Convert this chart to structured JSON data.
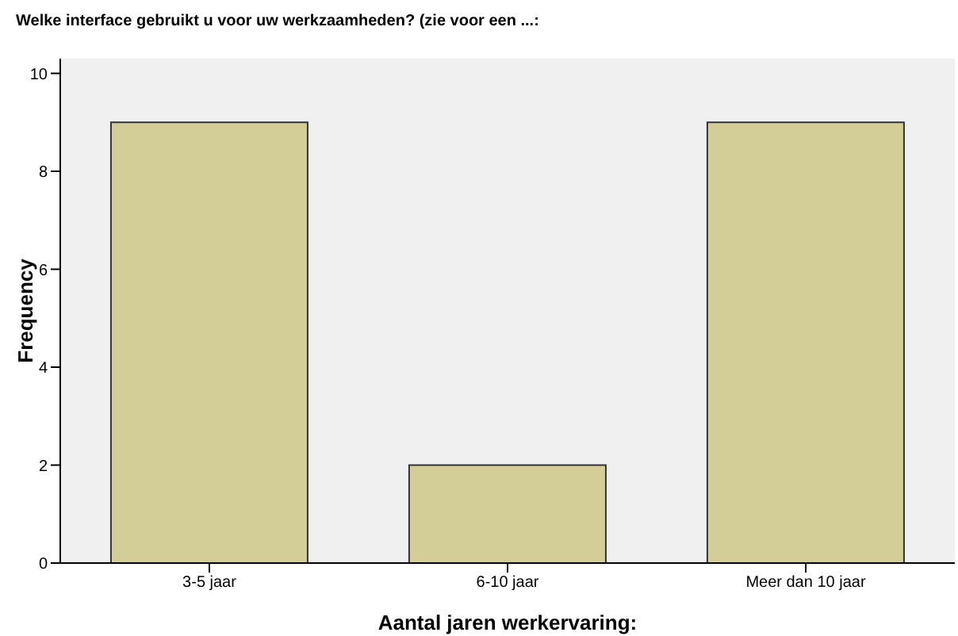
{
  "chart_data": {
    "type": "bar",
    "title": "Welke interface gebruikt u voor uw werkzaamheden? (zie voor een ...:",
    "xlabel": "Aantal jaren werkervaring:",
    "ylabel": "Frequency",
    "categories": [
      "3-5 jaar",
      "6-10 jaar",
      "Meer dan 10 jaar"
    ],
    "values": [
      9,
      2,
      9
    ],
    "color": "#d3ce97",
    "ylim": [
      0,
      10.3
    ],
    "yticks": [
      0,
      2,
      4,
      6,
      8,
      10
    ],
    "grid": false
  }
}
